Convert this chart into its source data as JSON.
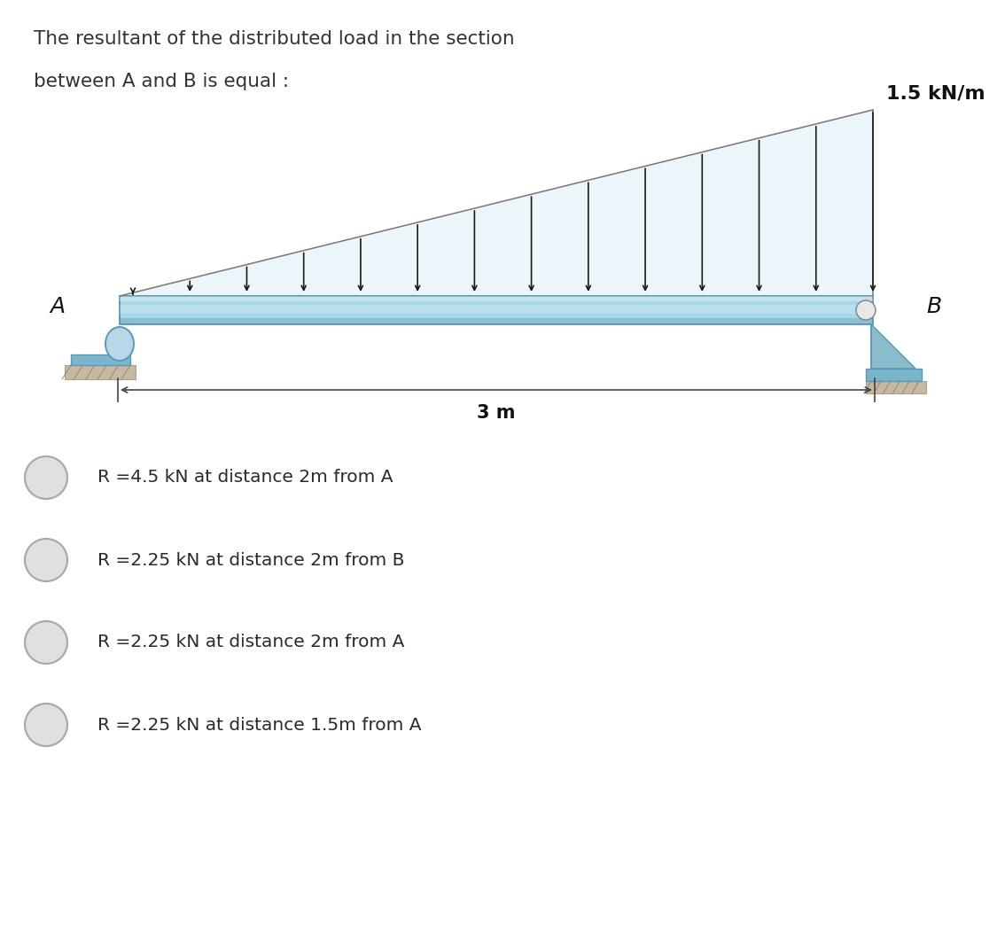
{
  "title_line1": "The resultant of the distributed load in the section",
  "title_line2": "between A and B is equal :",
  "load_label": "1.5 kN/m",
  "beam_label_A": "A",
  "beam_label_B": "B",
  "span_label": "3 m",
  "options": [
    "R =4.5 kN at distance 2m from A",
    "R =2.25 kN at distance 2m from B",
    "R =2.25 kN at distance 2m from A",
    "R =2.25 kN at distance 1.5m from A"
  ],
  "beam_color": "#a8d8e8",
  "beam_color_mid": "#78bdd4",
  "beam_color_dark": "#5a9ab5",
  "beam_color_edge": "#4a8aa5",
  "support_color": "#7ab5cc",
  "support_dark": "#5a9ab5",
  "ground_color": "#c8b8a0",
  "ground_dark": "#b0a088",
  "arrow_color": "#1a1a1a",
  "bg_color": "#ffffff",
  "text_color": "#333333",
  "option_text_color": "#2a2a2a",
  "radio_fill": "#e0e0e0",
  "radio_edge": "#aaaaaa",
  "dim_color": "#444444"
}
